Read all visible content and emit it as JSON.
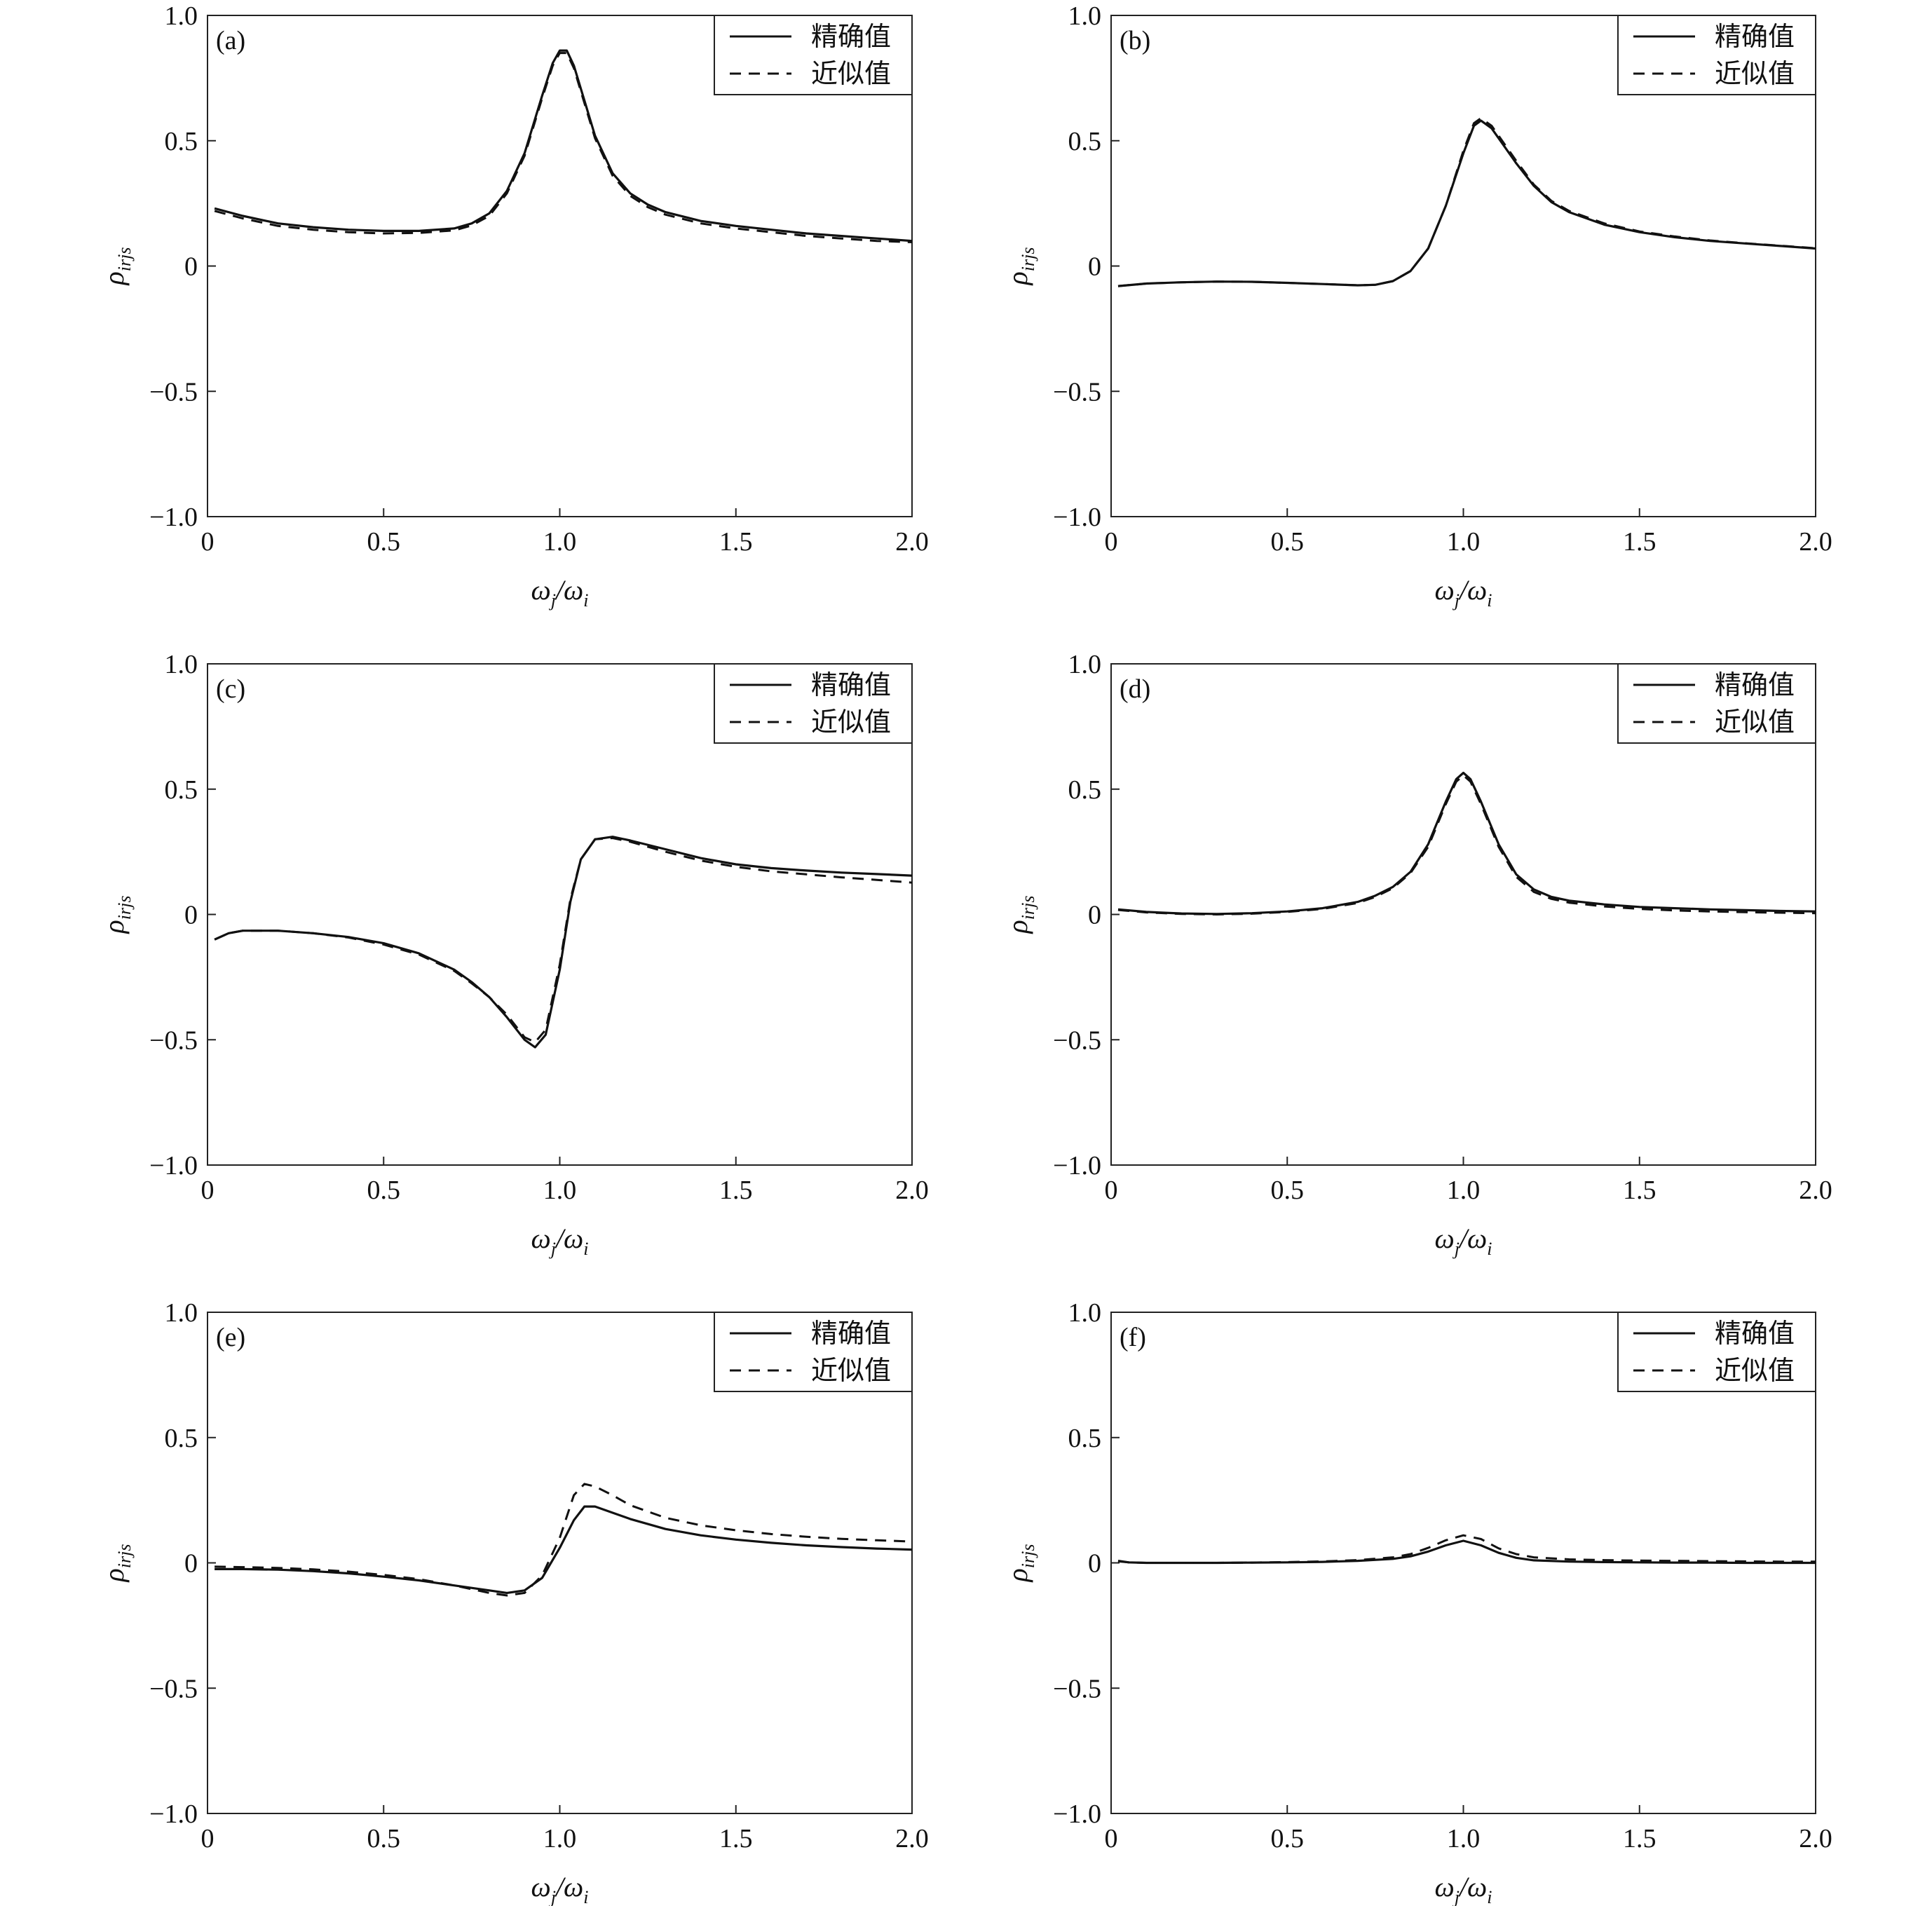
{
  "chart_data": [
    {
      "type": "line",
      "panel_label": "(a)",
      "xlabel": {
        "main": "ω",
        "sub1": "j",
        "slash": "/ω",
        "sub2": "i"
      },
      "ylabel": {
        "main": "ρ",
        "sub": "irjs"
      },
      "xlim": [
        0,
        2.0
      ],
      "ylim": [
        -1.0,
        1.0
      ],
      "xticks": [
        "0",
        "0.5",
        "1.0",
        "1.5",
        "2.0"
      ],
      "yticks": [
        "−1.0",
        "−0.5",
        "0",
        "0.5",
        "1.0"
      ],
      "legend": {
        "position": "top-right",
        "entries": [
          {
            "label": "精确值",
            "style": "solid"
          },
          {
            "label": "近似值",
            "style": "dashed"
          }
        ]
      },
      "series": [
        {
          "name": "精确值",
          "style": "solid",
          "x": [
            0.02,
            0.1,
            0.2,
            0.3,
            0.4,
            0.5,
            0.6,
            0.7,
            0.75,
            0.8,
            0.85,
            0.9,
            0.95,
            0.98,
            1.0,
            1.02,
            1.04,
            1.07,
            1.1,
            1.15,
            1.2,
            1.25,
            1.3,
            1.4,
            1.5,
            1.6,
            1.7,
            1.8,
            1.9,
            2.0
          ],
          "y": [
            0.23,
            0.2,
            0.17,
            0.155,
            0.145,
            0.14,
            0.14,
            0.15,
            0.17,
            0.21,
            0.3,
            0.45,
            0.68,
            0.81,
            0.86,
            0.86,
            0.8,
            0.66,
            0.52,
            0.37,
            0.29,
            0.245,
            0.215,
            0.18,
            0.16,
            0.145,
            0.13,
            0.12,
            0.11,
            0.1
          ]
        },
        {
          "name": "近似值",
          "style": "dashed",
          "x": [
            0.02,
            0.1,
            0.2,
            0.3,
            0.4,
            0.5,
            0.6,
            0.7,
            0.75,
            0.8,
            0.85,
            0.9,
            0.95,
            0.98,
            1.0,
            1.02,
            1.04,
            1.07,
            1.1,
            1.15,
            1.2,
            1.25,
            1.3,
            1.4,
            1.5,
            1.6,
            1.7,
            1.8,
            1.9,
            2.0
          ],
          "y": [
            0.22,
            0.19,
            0.16,
            0.145,
            0.135,
            0.13,
            0.132,
            0.142,
            0.162,
            0.2,
            0.29,
            0.44,
            0.67,
            0.8,
            0.85,
            0.85,
            0.79,
            0.65,
            0.51,
            0.36,
            0.28,
            0.235,
            0.205,
            0.17,
            0.15,
            0.135,
            0.12,
            0.11,
            0.1,
            0.095
          ]
        }
      ]
    },
    {
      "type": "line",
      "panel_label": "(b)",
      "xlabel": {
        "main": "ω",
        "sub1": "j",
        "slash": "/ω",
        "sub2": "i"
      },
      "ylabel": {
        "main": "ρ",
        "sub": "irjs"
      },
      "xlim": [
        0,
        2.0
      ],
      "ylim": [
        -1.0,
        1.0
      ],
      "xticks": [
        "0",
        "0.5",
        "1.0",
        "1.5",
        "2.0"
      ],
      "yticks": [
        "−1.0",
        "−0.5",
        "0",
        "0.5",
        "1.0"
      ],
      "legend": {
        "position": "top-right",
        "entries": [
          {
            "label": "精确值",
            "style": "solid"
          },
          {
            "label": "近似值",
            "style": "dashed"
          }
        ]
      },
      "series": [
        {
          "name": "精确值",
          "style": "solid",
          "x": [
            0.02,
            0.1,
            0.2,
            0.3,
            0.4,
            0.5,
            0.6,
            0.7,
            0.75,
            0.8,
            0.85,
            0.9,
            0.95,
            1.0,
            1.03,
            1.05,
            1.08,
            1.1,
            1.15,
            1.2,
            1.25,
            1.3,
            1.4,
            1.5,
            1.6,
            1.7,
            1.8,
            1.9,
            2.0
          ],
          "y": [
            -0.08,
            -0.07,
            -0.065,
            -0.062,
            -0.063,
            -0.067,
            -0.072,
            -0.077,
            -0.075,
            -0.06,
            -0.02,
            0.07,
            0.24,
            0.45,
            0.56,
            0.58,
            0.55,
            0.51,
            0.41,
            0.32,
            0.255,
            0.215,
            0.165,
            0.135,
            0.115,
            0.1,
            0.09,
            0.08,
            0.07
          ]
        },
        {
          "name": "近似值",
          "style": "dashed",
          "x": [
            0.02,
            0.1,
            0.2,
            0.3,
            0.4,
            0.5,
            0.6,
            0.7,
            0.75,
            0.8,
            0.85,
            0.9,
            0.95,
            1.0,
            1.03,
            1.05,
            1.08,
            1.1,
            1.15,
            1.2,
            1.25,
            1.3,
            1.4,
            1.5,
            1.6,
            1.7,
            1.8,
            1.9,
            2.0
          ],
          "y": [
            -0.08,
            -0.07,
            -0.065,
            -0.062,
            -0.063,
            -0.067,
            -0.072,
            -0.077,
            -0.075,
            -0.06,
            -0.02,
            0.07,
            0.24,
            0.46,
            0.57,
            0.59,
            0.56,
            0.52,
            0.42,
            0.325,
            0.26,
            0.22,
            0.17,
            0.138,
            0.118,
            0.102,
            0.091,
            0.081,
            0.071
          ]
        }
      ]
    },
    {
      "type": "line",
      "panel_label": "(c)",
      "xlabel": {
        "main": "ω",
        "sub1": "j",
        "slash": "/ω",
        "sub2": "i"
      },
      "ylabel": {
        "main": "ρ",
        "sub": "irjs"
      },
      "xlim": [
        0,
        2.0
      ],
      "ylim": [
        -1.0,
        1.0
      ],
      "xticks": [
        "0",
        "0.5",
        "1.0",
        "1.5",
        "2.0"
      ],
      "yticks": [
        "−1.0",
        "−0.5",
        "0",
        "0.5",
        "1.0"
      ],
      "legend": {
        "position": "top-right",
        "entries": [
          {
            "label": "精确值",
            "style": "solid"
          },
          {
            "label": "近似值",
            "style": "dashed"
          }
        ]
      },
      "series": [
        {
          "name": "精确值",
          "style": "solid",
          "x": [
            0.02,
            0.06,
            0.1,
            0.2,
            0.3,
            0.4,
            0.5,
            0.6,
            0.7,
            0.75,
            0.8,
            0.85,
            0.9,
            0.93,
            0.96,
            1.0,
            1.03,
            1.06,
            1.1,
            1.15,
            1.2,
            1.3,
            1.4,
            1.5,
            1.6,
            1.7,
            1.8,
            1.9,
            2.0
          ],
          "y": [
            -0.1,
            -0.075,
            -0.065,
            -0.065,
            -0.075,
            -0.09,
            -0.115,
            -0.155,
            -0.22,
            -0.27,
            -0.33,
            -0.41,
            -0.5,
            -0.53,
            -0.48,
            -0.22,
            0.05,
            0.22,
            0.3,
            0.31,
            0.295,
            0.26,
            0.225,
            0.2,
            0.185,
            0.175,
            0.167,
            0.161,
            0.155
          ]
        },
        {
          "name": "近似值",
          "style": "dashed",
          "x": [
            0.02,
            0.06,
            0.1,
            0.2,
            0.3,
            0.4,
            0.5,
            0.6,
            0.7,
            0.75,
            0.8,
            0.85,
            0.9,
            0.93,
            0.96,
            1.0,
            1.03,
            1.06,
            1.1,
            1.15,
            1.2,
            1.3,
            1.4,
            1.5,
            1.6,
            1.7,
            1.8,
            1.9,
            2.0
          ],
          "y": [
            -0.1,
            -0.075,
            -0.065,
            -0.065,
            -0.075,
            -0.092,
            -0.12,
            -0.16,
            -0.225,
            -0.275,
            -0.33,
            -0.4,
            -0.49,
            -0.51,
            -0.46,
            -0.2,
            0.06,
            0.22,
            0.3,
            0.305,
            0.29,
            0.25,
            0.215,
            0.19,
            0.172,
            0.16,
            0.148,
            0.138,
            0.127
          ]
        }
      ]
    },
    {
      "type": "line",
      "panel_label": "(d)",
      "xlabel": {
        "main": "ω",
        "sub1": "j",
        "slash": "/ω",
        "sub2": "i"
      },
      "ylabel": {
        "main": "ρ",
        "sub": "irjs"
      },
      "xlim": [
        0,
        2.0
      ],
      "ylim": [
        -1.0,
        1.0
      ],
      "xticks": [
        "0",
        "0.5",
        "1.0",
        "1.5",
        "2.0"
      ],
      "yticks": [
        "−1.0",
        "−0.5",
        "0",
        "0.5",
        "1.0"
      ],
      "legend": {
        "position": "top-right",
        "entries": [
          {
            "label": "精确值",
            "style": "solid"
          },
          {
            "label": "近似值",
            "style": "dashed"
          }
        ]
      },
      "series": [
        {
          "name": "精确值",
          "style": "solid",
          "x": [
            0.02,
            0.1,
            0.2,
            0.3,
            0.4,
            0.5,
            0.6,
            0.7,
            0.75,
            0.8,
            0.85,
            0.9,
            0.95,
            0.98,
            1.0,
            1.02,
            1.05,
            1.1,
            1.15,
            1.2,
            1.25,
            1.3,
            1.4,
            1.5,
            1.6,
            1.7,
            1.8,
            1.9,
            2.0
          ],
          "y": [
            0.02,
            0.01,
            0.004,
            0.002,
            0.005,
            0.012,
            0.025,
            0.05,
            0.075,
            0.11,
            0.17,
            0.28,
            0.45,
            0.54,
            0.565,
            0.54,
            0.45,
            0.28,
            0.16,
            0.1,
            0.07,
            0.055,
            0.04,
            0.03,
            0.025,
            0.02,
            0.017,
            0.014,
            0.012
          ]
        },
        {
          "name": "近似值",
          "style": "dashed",
          "x": [
            0.02,
            0.1,
            0.2,
            0.3,
            0.4,
            0.5,
            0.6,
            0.7,
            0.75,
            0.8,
            0.85,
            0.9,
            0.95,
            0.98,
            1.0,
            1.02,
            1.05,
            1.1,
            1.15,
            1.2,
            1.25,
            1.3,
            1.4,
            1.5,
            1.6,
            1.7,
            1.8,
            1.9,
            2.0
          ],
          "y": [
            0.018,
            0.008,
            0.002,
            0.0,
            0.003,
            0.01,
            0.022,
            0.046,
            0.07,
            0.105,
            0.165,
            0.27,
            0.44,
            0.53,
            0.555,
            0.53,
            0.44,
            0.27,
            0.15,
            0.09,
            0.062,
            0.047,
            0.032,
            0.022,
            0.016,
            0.012,
            0.009,
            0.007,
            0.005
          ]
        }
      ]
    },
    {
      "type": "line",
      "panel_label": "(e)",
      "xlabel": {
        "main": "ω",
        "sub1": "j",
        "slash": "/ω",
        "sub2": "i"
      },
      "ylabel": {
        "main": "ρ",
        "sub": "irjs"
      },
      "xlim": [
        0,
        2.0
      ],
      "ylim": [
        -1.0,
        1.0
      ],
      "xticks": [
        "0",
        "0.5",
        "1.0",
        "1.5",
        "2.0"
      ],
      "yticks": [
        "−1.0",
        "−0.5",
        "0",
        "0.5",
        "1.0"
      ],
      "legend": {
        "position": "top-right",
        "entries": [
          {
            "label": "精确值",
            "style": "solid"
          },
          {
            "label": "近似值",
            "style": "dashed"
          }
        ]
      },
      "series": [
        {
          "name": "精确值",
          "style": "solid",
          "x": [
            0.02,
            0.1,
            0.2,
            0.3,
            0.4,
            0.5,
            0.6,
            0.7,
            0.8,
            0.85,
            0.9,
            0.95,
            1.0,
            1.04,
            1.07,
            1.1,
            1.15,
            1.2,
            1.3,
            1.4,
            1.5,
            1.6,
            1.7,
            1.8,
            1.9,
            2.0
          ],
          "y": [
            -0.025,
            -0.025,
            -0.027,
            -0.033,
            -0.042,
            -0.055,
            -0.07,
            -0.09,
            -0.11,
            -0.12,
            -0.11,
            -0.06,
            0.06,
            0.17,
            0.225,
            0.225,
            0.2,
            0.175,
            0.135,
            0.11,
            0.093,
            0.08,
            0.07,
            0.063,
            0.057,
            0.053
          ]
        },
        {
          "name": "近似值",
          "style": "dashed",
          "x": [
            0.02,
            0.1,
            0.2,
            0.3,
            0.4,
            0.5,
            0.6,
            0.7,
            0.8,
            0.85,
            0.9,
            0.95,
            1.0,
            1.04,
            1.07,
            1.1,
            1.15,
            1.2,
            1.3,
            1.4,
            1.5,
            1.6,
            1.7,
            1.8,
            1.9,
            2.0
          ],
          "y": [
            -0.015,
            -0.017,
            -0.02,
            -0.026,
            -0.035,
            -0.048,
            -0.065,
            -0.09,
            -0.12,
            -0.13,
            -0.12,
            -0.05,
            0.1,
            0.27,
            0.315,
            0.305,
            0.27,
            0.23,
            0.18,
            0.15,
            0.13,
            0.115,
            0.104,
            0.096,
            0.09,
            0.085
          ]
        }
      ]
    },
    {
      "type": "line",
      "panel_label": "(f)",
      "xlabel": {
        "main": "ω",
        "sub1": "j",
        "slash": "/ω",
        "sub2": "i"
      },
      "ylabel": {
        "main": "ρ",
        "sub": "irjs"
      },
      "xlim": [
        0,
        2.0
      ],
      "ylim": [
        -1.0,
        1.0
      ],
      "xticks": [
        "0",
        "0.5",
        "1.0",
        "1.5",
        "2.0"
      ],
      "yticks": [
        "−1.0",
        "−0.5",
        "0",
        "0.5",
        "1.0"
      ],
      "legend": {
        "position": "top-right",
        "entries": [
          {
            "label": "精确值",
            "style": "solid"
          },
          {
            "label": "近似值",
            "style": "dashed"
          }
        ]
      },
      "series": [
        {
          "name": "精确值",
          "style": "solid",
          "x": [
            0.02,
            0.05,
            0.1,
            0.2,
            0.3,
            0.4,
            0.5,
            0.6,
            0.7,
            0.8,
            0.85,
            0.9,
            0.95,
            1.0,
            1.05,
            1.1,
            1.15,
            1.2,
            1.3,
            1.4,
            1.5,
            1.6,
            1.7,
            1.8,
            1.9,
            2.0
          ],
          "y": [
            0.008,
            0.002,
            0.0,
            0.0,
            0.0,
            0.001,
            0.002,
            0.004,
            0.008,
            0.016,
            0.026,
            0.045,
            0.07,
            0.088,
            0.07,
            0.04,
            0.02,
            0.01,
            0.005,
            0.003,
            0.002,
            0.001,
            0.001,
            0.0,
            0.0,
            0.0
          ]
        },
        {
          "name": "近似值",
          "style": "dashed",
          "x": [
            0.02,
            0.05,
            0.1,
            0.2,
            0.3,
            0.4,
            0.5,
            0.6,
            0.7,
            0.8,
            0.85,
            0.9,
            0.95,
            1.0,
            1.05,
            1.1,
            1.15,
            1.2,
            1.3,
            1.4,
            1.5,
            1.6,
            1.7,
            1.8,
            1.9,
            2.0
          ],
          "y": [
            0.006,
            0.002,
            0.0,
            0.0,
            0.0,
            0.001,
            0.003,
            0.006,
            0.011,
            0.022,
            0.035,
            0.06,
            0.09,
            0.11,
            0.095,
            0.058,
            0.035,
            0.022,
            0.014,
            0.011,
            0.009,
            0.008,
            0.007,
            0.006,
            0.005,
            0.005
          ]
        }
      ]
    }
  ]
}
